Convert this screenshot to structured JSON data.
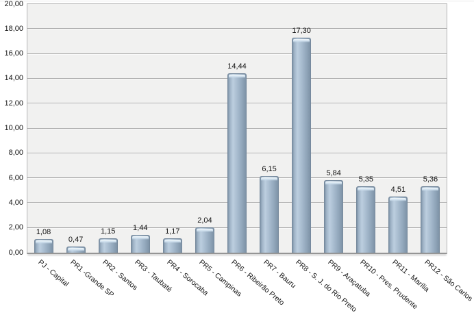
{
  "chart_data": {
    "type": "bar",
    "title": "",
    "xlabel": "",
    "ylabel": "",
    "legend": "none",
    "grid": "horizontal",
    "ylim": [
      0,
      20
    ],
    "ytick_step": 2,
    "decimal_separator": ",",
    "ytick_labels": [
      "0,00",
      "2,00",
      "4,00",
      "6,00",
      "8,00",
      "10,00",
      "12,00",
      "14,00",
      "16,00",
      "18,00",
      "20,00"
    ],
    "categories": [
      "PJ - Capital",
      "PR1 -Grande SP",
      "PR2 - Santos",
      "PR3 - Taubaté",
      "PR4 - Sorocaba",
      "PR5 - Campinas",
      "PR6 - Ribeirão Preto",
      "PR7 - Bauru",
      "PR8 - S. J. do Rio Preto",
      "PR9 - Araçatuba",
      "PR10 - Pres. Prudente",
      "PR11 - Marília",
      "PR12 - São Carlos"
    ],
    "values": [
      1.08,
      0.47,
      1.15,
      1.44,
      1.17,
      2.04,
      14.44,
      6.15,
      17.3,
      5.84,
      5.35,
      4.51,
      5.36
    ],
    "value_labels": [
      "1,08",
      "0,47",
      "1,15",
      "1,44",
      "1,17",
      "2,04",
      "14,44",
      "6,15",
      "17,30",
      "5,84",
      "5,35",
      "4,51",
      "5,36"
    ],
    "colors": {
      "bar_face": "#a9bdd0",
      "bar_edge_dark": "#7e93a7",
      "bar_highlight": "#d9e6f1",
      "bar_border": "#76899c",
      "plot_background": "#f1f1f0",
      "gridline": "#a9a9a9",
      "axis_line": "#8e8e8e",
      "label_text": "#141414",
      "page_background": "#ffffff"
    }
  }
}
